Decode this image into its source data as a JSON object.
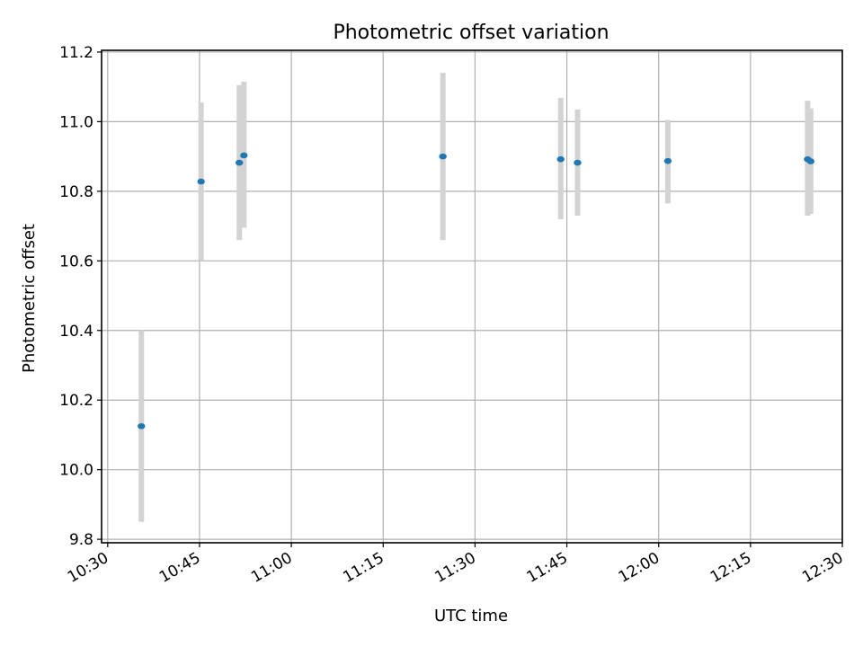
{
  "chart_data": {
    "type": "scatter",
    "title": "Photometric offset variation",
    "xlabel": "UTC time",
    "ylabel": "Photometric offset",
    "x_axis_kind": "time",
    "xlim": [
      "10:29",
      "12:30"
    ],
    "ylim": [
      9.79,
      11.205
    ],
    "x_ticks": [
      "10:30",
      "10:45",
      "11:00",
      "11:15",
      "11:30",
      "11:45",
      "12:00",
      "12:15",
      "12:30"
    ],
    "y_ticks": [
      "9.8",
      "10.0",
      "10.2",
      "10.4",
      "10.6",
      "10.8",
      "11.0",
      "11.2"
    ],
    "grid": true,
    "series": [
      {
        "color": "#1f77b4",
        "error_bar_color": "#d3d3d3",
        "points": [
          {
            "x": "10:35:30",
            "y": 10.125,
            "lo": 9.85,
            "hi": 10.4
          },
          {
            "x": "10:45:15",
            "y": 10.828,
            "lo": 10.6,
            "hi": 11.055
          },
          {
            "x": "10:51:30",
            "y": 10.882,
            "lo": 10.66,
            "hi": 11.105
          },
          {
            "x": "10:52:15",
            "y": 10.903,
            "lo": 10.695,
            "hi": 11.115
          },
          {
            "x": "11:24:45",
            "y": 10.9,
            "lo": 10.66,
            "hi": 11.14
          },
          {
            "x": "11:44:00",
            "y": 10.892,
            "lo": 10.72,
            "hi": 11.068
          },
          {
            "x": "11:46:45",
            "y": 10.882,
            "lo": 10.73,
            "hi": 11.035
          },
          {
            "x": "12:01:30",
            "y": 10.887,
            "lo": 10.765,
            "hi": 11.005
          },
          {
            "x": "12:24:20",
            "y": 10.892,
            "lo": 10.73,
            "hi": 11.06
          },
          {
            "x": "12:24:50",
            "y": 10.886,
            "lo": 10.735,
            "hi": 11.038
          }
        ]
      }
    ]
  }
}
